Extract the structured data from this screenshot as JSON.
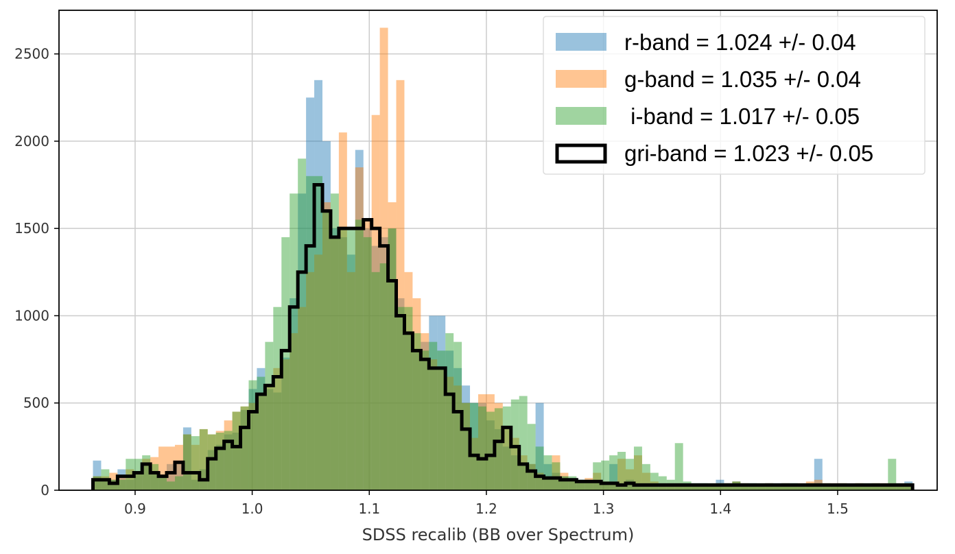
{
  "chart_data": {
    "type": "bar",
    "subtype": "histogram",
    "xlabel": "SDSS recalib (BB over Spectrum)",
    "ylabel": "",
    "xlim": [
      0.835,
      1.585
    ],
    "ylim": [
      0,
      2750
    ],
    "xticks": [
      {
        "value": 0.9,
        "label": "0.9"
      },
      {
        "value": 1.0,
        "label": "1.0"
      },
      {
        "value": 1.1,
        "label": "1.1"
      },
      {
        "value": 1.2,
        "label": "1.2"
      },
      {
        "value": 1.3,
        "label": "1.3"
      },
      {
        "value": 1.4,
        "label": "1.4"
      },
      {
        "value": 1.5,
        "label": "1.5"
      }
    ],
    "yticks": [
      {
        "value": 0,
        "label": "0"
      },
      {
        "value": 500,
        "label": "500"
      },
      {
        "value": 1000,
        "label": "1000"
      },
      {
        "value": 1500,
        "label": "1500"
      },
      {
        "value": 2000,
        "label": "2000"
      },
      {
        "value": 2500,
        "label": "2500"
      }
    ],
    "grid": true,
    "legend_position": "top-right",
    "bin_edges": {
      "start": 0.864,
      "width": 0.007,
      "count": 100
    },
    "series": [
      {
        "name": "r-band = 1.024 +/- 0.04",
        "style": "filled",
        "color": "#1f77b4",
        "opacity": 0.45,
        "values": [
          170,
          60,
          60,
          120,
          60,
          90,
          140,
          90,
          90,
          150,
          160,
          360,
          60,
          120,
          230,
          260,
          320,
          330,
          460,
          580,
          700,
          580,
          560,
          760,
          1100,
          1700,
          2250,
          2350,
          2000,
          1500,
          1450,
          1350,
          1950,
          1500,
          1400,
          1450,
          1500,
          1100,
          900,
          800,
          850,
          1000,
          1000,
          800,
          700,
          600,
          500,
          500,
          400,
          350,
          250,
          200,
          150,
          150,
          500,
          150,
          100,
          80,
          70,
          60,
          60,
          50,
          40,
          150,
          40,
          60,
          40,
          40,
          40,
          40,
          40,
          40,
          40,
          40,
          40,
          30,
          60,
          40,
          50,
          40,
          40,
          30,
          40,
          40,
          40,
          40,
          30,
          40,
          180,
          30,
          30,
          30,
          30,
          30,
          30,
          30,
          30,
          30,
          30,
          50
        ]
      },
      {
        "name": "g-band = 1.035 +/- 0.04",
        "style": "filled",
        "color": "#ff7f0e",
        "opacity": 0.45,
        "values": [
          80,
          80,
          100,
          80,
          120,
          100,
          180,
          190,
          250,
          250,
          260,
          320,
          260,
          350,
          320,
          340,
          400,
          450,
          480,
          500,
          550,
          600,
          700,
          750,
          900,
          1050,
          1250,
          1350,
          1650,
          1450,
          2050,
          1250,
          1850,
          1550,
          2150,
          2650,
          1650,
          2350,
          1250,
          1100,
          900,
          750,
          700,
          650,
          600,
          500,
          300,
          550,
          550,
          500,
          350,
          300,
          200,
          150,
          100,
          80,
          200,
          100,
          60,
          50,
          70,
          100,
          50,
          50,
          180,
          120,
          200,
          100,
          50,
          40,
          40,
          40,
          30,
          30,
          30,
          30,
          40,
          40,
          50,
          40,
          30,
          30,
          40,
          30,
          40,
          30,
          40,
          50,
          60,
          40,
          40,
          40,
          30,
          40,
          30,
          40,
          40,
          40,
          30,
          40
        ]
      },
      {
        "name": " i-band = 1.017 +/- 0.05",
        "style": "filled",
        "color": "#2ca02c",
        "opacity": 0.45,
        "values": [
          80,
          120,
          60,
          60,
          180,
          180,
          200,
          150,
          80,
          50,
          80,
          320,
          310,
          350,
          320,
          330,
          340,
          450,
          480,
          630,
          650,
          850,
          1050,
          1450,
          1700,
          1900,
          1800,
          1800,
          1600,
          1700,
          1500,
          1500,
          1550,
          1450,
          1250,
          1300,
          1500,
          1050,
          1050,
          900,
          800,
          850,
          800,
          900,
          850,
          500,
          500,
          480,
          450,
          470,
          480,
          520,
          540,
          380,
          250,
          200,
          160,
          80,
          80,
          60,
          60,
          160,
          170,
          200,
          220,
          180,
          250,
          150,
          100,
          80,
          60,
          270,
          50,
          40,
          40,
          40,
          40,
          40,
          50,
          40,
          40,
          40,
          40,
          30,
          40,
          40,
          30,
          40,
          40,
          40,
          30,
          40,
          30,
          40,
          40,
          40,
          30,
          180,
          40,
          40
        ]
      },
      {
        "name": "gri-band = 1.023 +/- 0.05",
        "style": "step",
        "color": "#000000",
        "values": [
          60,
          60,
          40,
          80,
          80,
          100,
          150,
          100,
          80,
          100,
          160,
          100,
          100,
          60,
          180,
          240,
          280,
          250,
          360,
          450,
          550,
          600,
          650,
          800,
          1050,
          1250,
          1400,
          1750,
          1600,
          1450,
          1500,
          1500,
          1500,
          1550,
          1500,
          1400,
          1200,
          1000,
          900,
          800,
          750,
          700,
          700,
          550,
          450,
          350,
          200,
          180,
          200,
          280,
          360,
          250,
          150,
          110,
          80,
          70,
          70,
          60,
          60,
          50,
          50,
          50,
          40,
          40,
          30,
          40,
          30,
          30,
          30,
          30,
          30,
          30,
          30,
          30,
          30,
          30,
          30,
          30,
          30,
          30,
          30,
          30,
          30,
          30,
          30,
          30,
          30,
          30,
          30,
          30,
          30,
          30,
          30,
          30,
          30,
          30,
          30,
          30,
          30,
          30
        ]
      }
    ]
  }
}
